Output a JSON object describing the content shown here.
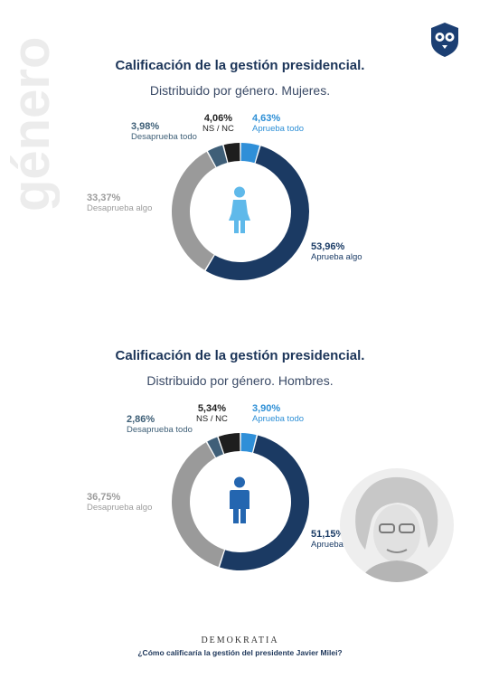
{
  "side_word": "género",
  "charts": [
    {
      "title": "Calificación de la gestión presidencial.",
      "subtitle": "Distribuido por género. Mujeres.",
      "icon": "female-person-icon",
      "labels": [
        {
          "pct": "4,63%",
          "cap": "Aprueba todo"
        },
        {
          "pct": "53,96%",
          "cap": "Aprueba algo"
        },
        {
          "pct": "33,37%",
          "cap": "Desaprueba algo"
        },
        {
          "pct": "3,98%",
          "cap": "Desaprueba todo"
        },
        {
          "pct": "4,06%",
          "cap": "NS / NC"
        }
      ]
    },
    {
      "title": "Calificación de la gestión presidencial.",
      "subtitle": "Distribuido por género. Hombres.",
      "icon": "male-person-icon",
      "labels": [
        {
          "pct": "3,90%",
          "cap": "Aprueba todo"
        },
        {
          "pct": "51,15%",
          "cap": "Aprueba algo"
        },
        {
          "pct": "36,75%",
          "cap": "Desaprueba algo"
        },
        {
          "pct": "2,86%",
          "cap": "Desaprueba todo"
        },
        {
          "pct": "5,34%",
          "cap": "NS / NC"
        }
      ]
    }
  ],
  "chart_data": [
    {
      "type": "pie",
      "title": "Calificación de la gestión presidencial.",
      "subtitle": "Distribuido por género. Mujeres.",
      "categories": [
        "Aprueba todo",
        "Aprueba algo",
        "Desaprueba algo",
        "Desaprueba todo",
        "NS / NC"
      ],
      "values": [
        4.63,
        53.96,
        33.37,
        3.98,
        4.06
      ],
      "colors": [
        "#2f8fd8",
        "#1b3a63",
        "#9a9a9a",
        "#3f5f78",
        "#1e1e1e"
      ]
    },
    {
      "type": "pie",
      "title": "Calificación de la gestión presidencial.",
      "subtitle": "Distribuido por género. Hombres.",
      "categories": [
        "Aprueba todo",
        "Aprueba algo",
        "Desaprueba algo",
        "Desaprueba todo",
        "NS / NC"
      ],
      "values": [
        3.9,
        51.15,
        36.75,
        2.86,
        5.34
      ],
      "colors": [
        "#2f8fd8",
        "#1b3a63",
        "#9a9a9a",
        "#3f5f78",
        "#1e1e1e"
      ]
    }
  ],
  "footer": {
    "brand": "DEMOKRATIA",
    "question": "¿Cómo calificaría la gestión del presidente Javier Milei?"
  }
}
